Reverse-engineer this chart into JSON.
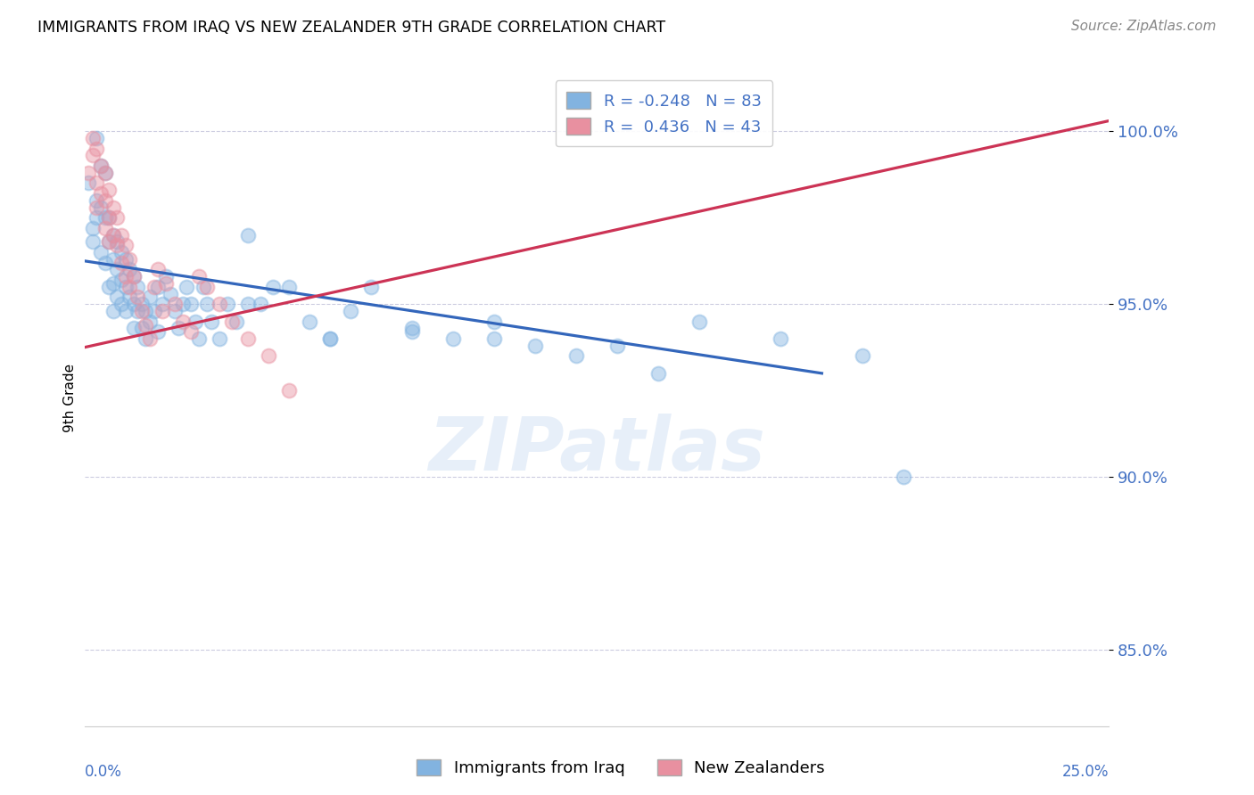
{
  "title": "IMMIGRANTS FROM IRAQ VS NEW ZEALANDER 9TH GRADE CORRELATION CHART",
  "source": "Source: ZipAtlas.com",
  "ylabel": "9th Grade",
  "ytick_labels": [
    "100.0%",
    "95.0%",
    "90.0%",
    "85.0%"
  ],
  "ytick_values": [
    1.0,
    0.95,
    0.9,
    0.85
  ],
  "xmin": 0.0,
  "xmax": 0.25,
  "ymin": 0.828,
  "ymax": 1.018,
  "blue_R": -0.248,
  "blue_N": 83,
  "pink_R": 0.436,
  "pink_N": 43,
  "bottom_legend_blue": "Immigrants from Iraq",
  "bottom_legend_pink": "New Zealanders",
  "blue_color": "#82b3e0",
  "pink_color": "#e890a0",
  "blue_line_color": "#3366bb",
  "pink_line_color": "#cc3355",
  "watermark": "ZIPatlas",
  "blue_line_x0": 0.0,
  "blue_line_x1": 0.18,
  "blue_line_y0": 0.9625,
  "blue_line_y1": 0.93,
  "pink_line_x0": 0.0,
  "pink_line_x1": 0.25,
  "pink_line_y0": 0.9375,
  "pink_line_y1": 1.003,
  "dot_size": 130,
  "blue_scatter_x": [
    0.001,
    0.002,
    0.002,
    0.003,
    0.003,
    0.003,
    0.004,
    0.004,
    0.004,
    0.005,
    0.005,
    0.005,
    0.006,
    0.006,
    0.006,
    0.007,
    0.007,
    0.007,
    0.007,
    0.008,
    0.008,
    0.008,
    0.009,
    0.009,
    0.009,
    0.01,
    0.01,
    0.01,
    0.011,
    0.011,
    0.012,
    0.012,
    0.012,
    0.013,
    0.013,
    0.014,
    0.014,
    0.015,
    0.015,
    0.016,
    0.016,
    0.017,
    0.018,
    0.018,
    0.019,
    0.02,
    0.021,
    0.022,
    0.023,
    0.024,
    0.025,
    0.026,
    0.027,
    0.028,
    0.029,
    0.03,
    0.031,
    0.033,
    0.035,
    0.037,
    0.04,
    0.043,
    0.046,
    0.05,
    0.055,
    0.06,
    0.065,
    0.07,
    0.08,
    0.09,
    0.1,
    0.11,
    0.13,
    0.15,
    0.17,
    0.19,
    0.2,
    0.04,
    0.06,
    0.08,
    0.1,
    0.12,
    0.14
  ],
  "blue_scatter_y": [
    0.985,
    0.972,
    0.968,
    0.998,
    0.98,
    0.975,
    0.99,
    0.978,
    0.965,
    0.988,
    0.975,
    0.962,
    0.975,
    0.968,
    0.955,
    0.97,
    0.963,
    0.956,
    0.948,
    0.968,
    0.96,
    0.952,
    0.965,
    0.957,
    0.95,
    0.963,
    0.955,
    0.948,
    0.96,
    0.952,
    0.958,
    0.95,
    0.943,
    0.955,
    0.948,
    0.95,
    0.943,
    0.948,
    0.94,
    0.952,
    0.945,
    0.948,
    0.955,
    0.942,
    0.95,
    0.958,
    0.953,
    0.948,
    0.943,
    0.95,
    0.955,
    0.95,
    0.945,
    0.94,
    0.955,
    0.95,
    0.945,
    0.94,
    0.95,
    0.945,
    0.97,
    0.95,
    0.955,
    0.955,
    0.945,
    0.94,
    0.948,
    0.955,
    0.943,
    0.94,
    0.945,
    0.938,
    0.938,
    0.945,
    0.94,
    0.935,
    0.9,
    0.95,
    0.94,
    0.942,
    0.94,
    0.935,
    0.93
  ],
  "pink_scatter_x": [
    0.001,
    0.002,
    0.002,
    0.003,
    0.003,
    0.003,
    0.004,
    0.004,
    0.005,
    0.005,
    0.005,
    0.006,
    0.006,
    0.006,
    0.007,
    0.007,
    0.008,
    0.008,
    0.009,
    0.009,
    0.01,
    0.01,
    0.011,
    0.011,
    0.012,
    0.013,
    0.014,
    0.015,
    0.016,
    0.017,
    0.018,
    0.019,
    0.02,
    0.022,
    0.024,
    0.026,
    0.028,
    0.03,
    0.033,
    0.036,
    0.04,
    0.045,
    0.05
  ],
  "pink_scatter_y": [
    0.988,
    0.993,
    0.998,
    0.995,
    0.985,
    0.978,
    0.99,
    0.982,
    0.988,
    0.98,
    0.972,
    0.983,
    0.975,
    0.968,
    0.978,
    0.97,
    0.975,
    0.967,
    0.97,
    0.962,
    0.967,
    0.958,
    0.963,
    0.955,
    0.958,
    0.952,
    0.948,
    0.944,
    0.94,
    0.955,
    0.96,
    0.948,
    0.956,
    0.95,
    0.945,
    0.942,
    0.958,
    0.955,
    0.95,
    0.945,
    0.94,
    0.935,
    0.925
  ]
}
